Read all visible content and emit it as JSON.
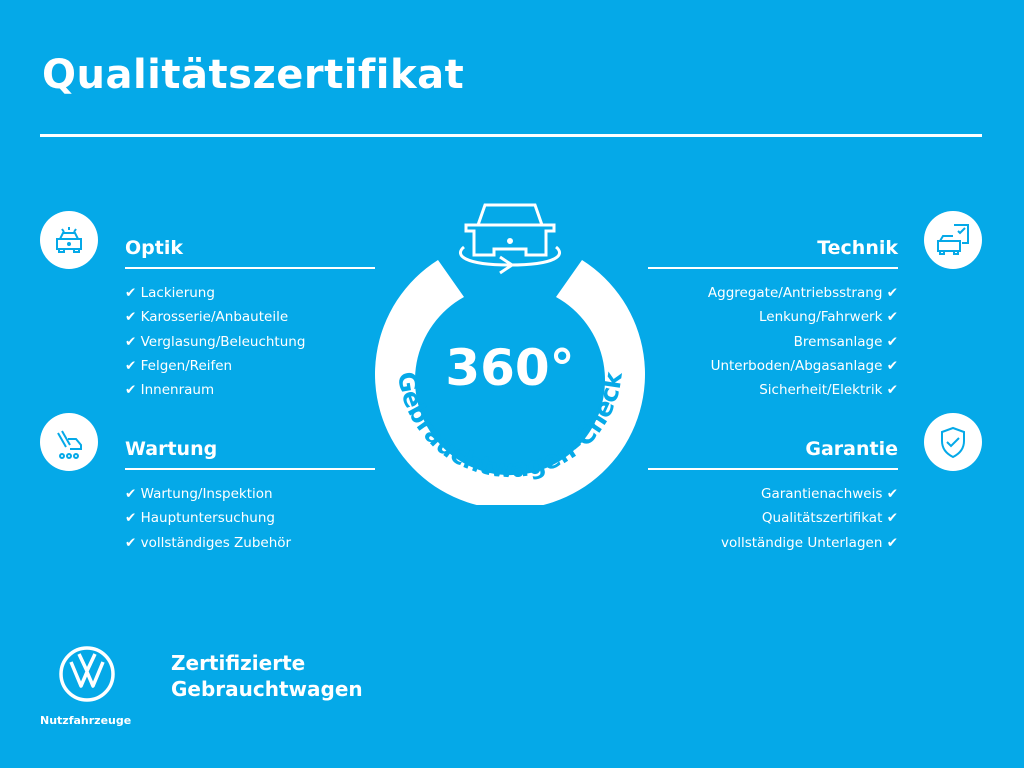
{
  "title": "Qualitätszertifikat",
  "badge": {
    "number": "360°",
    "arc_text": "Gebrauchtwagen-Check"
  },
  "sections": {
    "optik": {
      "title": "Optik",
      "icon": "car-lights-icon",
      "items": [
        "Lackierung",
        "Karosserie/Anbauteile",
        "Verglasung/Beleuchtung",
        "Felgen/Reifen",
        "Innenraum"
      ]
    },
    "wartung": {
      "title": "Wartung",
      "icon": "car-service-icon",
      "items": [
        "Wartung/Inspektion",
        "Hauptuntersuchung",
        "vollständiges Zubehör"
      ]
    },
    "technik": {
      "title": "Technik",
      "icon": "car-checklist-icon",
      "items": [
        "Aggregate/Antriebsstrang",
        "Lenkung/Fahrwerk",
        "Bremsanlage",
        "Unterboden/Abgasanlage",
        "Sicherheit/Elektrik"
      ]
    },
    "garantie": {
      "title": "Garantie",
      "icon": "shield-check-icon",
      "items": [
        "Garantienachweis",
        "Qualitätszertifikat",
        "vollständige Unterlagen"
      ]
    }
  },
  "check": "✔",
  "brand": {
    "line1": "Zertifizierte",
    "line2": "Gebrauchtwagen",
    "sub": "Nutzfahrzeuge"
  },
  "colors": {
    "background": "#05a9e8",
    "foreground": "#ffffff"
  }
}
